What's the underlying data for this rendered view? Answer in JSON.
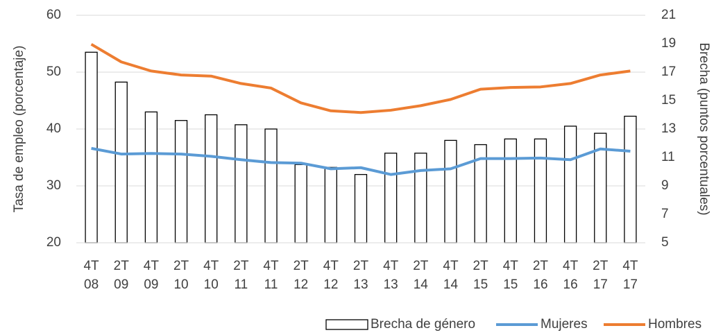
{
  "chart_data": {
    "type": "bar-line",
    "categories": [
      [
        "4T",
        "08"
      ],
      [
        "2T",
        "09"
      ],
      [
        "4T",
        "09"
      ],
      [
        "2T",
        "10"
      ],
      [
        "4T",
        "10"
      ],
      [
        "2T",
        "11"
      ],
      [
        "4T",
        "11"
      ],
      [
        "2T",
        "12"
      ],
      [
        "4T",
        "12"
      ],
      [
        "2T",
        "13"
      ],
      [
        "4T",
        "13"
      ],
      [
        "2T",
        "14"
      ],
      [
        "4T",
        "14"
      ],
      [
        "2T",
        "15"
      ],
      [
        "4T",
        "15"
      ],
      [
        "2T",
        "16"
      ],
      [
        "4T",
        "16"
      ],
      [
        "2T",
        "17"
      ],
      [
        "4T",
        "17"
      ]
    ],
    "y_label": "Tasa de empleo (porcentaje)",
    "y2_label": "Brecha (puntos porcentuales)",
    "ylim": [
      20,
      60
    ],
    "yticks": [
      20,
      30,
      40,
      50,
      60
    ],
    "y2lim": [
      5,
      21
    ],
    "y2ticks": [
      5,
      7,
      9,
      11,
      13,
      15,
      17,
      19,
      21
    ],
    "series": [
      {
        "name": "Brecha de género",
        "type": "bar",
        "axis": "y2",
        "color": "#000000",
        "values": [
          18.4,
          16.3,
          14.2,
          13.6,
          14.0,
          13.3,
          13.0,
          10.5,
          10.3,
          9.8,
          11.3,
          11.3,
          12.2,
          11.9,
          12.3,
          12.3,
          13.2,
          12.7,
          13.9
        ]
      },
      {
        "name": "Mujeres",
        "type": "line",
        "color": "#5b9bd5",
        "values": [
          36.6,
          35.6,
          35.7,
          35.6,
          35.2,
          34.6,
          34.1,
          34.0,
          33.0,
          33.2,
          32.0,
          32.7,
          33.0,
          34.8,
          34.8,
          34.9,
          34.6,
          36.5,
          36.1
        ]
      },
      {
        "name": "Hombres",
        "type": "line",
        "color": "#ed7d31",
        "values": [
          54.9,
          51.8,
          50.2,
          49.5,
          49.3,
          48.0,
          47.2,
          44.6,
          43.2,
          42.9,
          43.3,
          44.1,
          45.2,
          47.0,
          47.3,
          47.4,
          48.0,
          49.5,
          50.2
        ]
      }
    ]
  }
}
